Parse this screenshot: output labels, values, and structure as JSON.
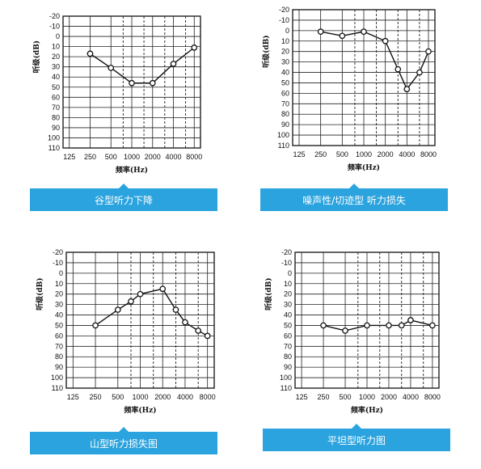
{
  "chart_data": [
    {
      "type": "line",
      "title": "",
      "xlabel": "频率(Hz)",
      "ylabel": "听级(dB)",
      "categories": [
        "125",
        "250",
        "500",
        "1000",
        "2000",
        "4000",
        "8000"
      ],
      "y_ticks": [
        "-20",
        "-10",
        "0",
        "10",
        "20",
        "30",
        "40",
        "50",
        "60",
        "70",
        "80",
        "90",
        "100",
        "110"
      ],
      "ylim": [
        -20,
        110
      ],
      "y_inverted": true,
      "grid": true,
      "series": [
        {
          "x": [
            "250",
            "500",
            "1000",
            "2000",
            "4000",
            "8000"
          ],
          "values": [
            17,
            31,
            46,
            46,
            27,
            11
          ]
        }
      ],
      "caption": "谷型听力下降"
    },
    {
      "type": "line",
      "title": "",
      "xlabel": "频率(Hz)",
      "ylabel": "听级(dB)",
      "categories": [
        "125",
        "250",
        "500",
        "1000",
        "2000",
        "4000",
        "8000"
      ],
      "y_ticks": [
        "-20",
        "-10",
        "0",
        "10",
        "20",
        "30",
        "40",
        "50",
        "60",
        "70",
        "80",
        "90",
        "100",
        "110"
      ],
      "ylim": [
        -20,
        110
      ],
      "y_inverted": true,
      "grid": true,
      "series": [
        {
          "x": [
            "250",
            "500",
            "1000",
            "2000",
            "3000",
            "4000",
            "6000",
            "8000"
          ],
          "values": [
            1,
            5,
            1,
            10,
            37,
            56,
            40,
            20
          ]
        }
      ],
      "caption": "噪声性/切迹型 听力损失"
    },
    {
      "type": "line",
      "title": "",
      "xlabel": "频率(Hz)",
      "ylabel": "听级(dB)",
      "categories": [
        "125",
        "250",
        "500",
        "1000",
        "2000",
        "4000",
        "8000"
      ],
      "y_ticks": [
        "-20",
        "-10",
        "0",
        "10",
        "20",
        "30",
        "40",
        "50",
        "60",
        "70",
        "80",
        "90",
        "100",
        "110"
      ],
      "ylim": [
        -20,
        110
      ],
      "y_inverted": true,
      "grid": true,
      "series": [
        {
          "x": [
            "250",
            "500",
            "750",
            "1000",
            "2000",
            "3000",
            "4000",
            "6000",
            "8000"
          ],
          "values": [
            50,
            35,
            27,
            20,
            15,
            35,
            47,
            55,
            60
          ]
        }
      ],
      "caption": "山型听力损失图"
    },
    {
      "type": "line",
      "title": "",
      "xlabel": "频率(Hz)",
      "ylabel": "听级(dB)",
      "categories": [
        "125",
        "250",
        "500",
        "1000",
        "2000",
        "4000",
        "8000"
      ],
      "y_ticks": [
        "-20",
        "-10",
        "0",
        "10",
        "20",
        "30",
        "40",
        "50",
        "60",
        "70",
        "80",
        "90",
        "100",
        "110"
      ],
      "ylim": [
        -20,
        110
      ],
      "y_inverted": true,
      "grid": true,
      "series": [
        {
          "x": [
            "250",
            "500",
            "1000",
            "2000",
            "3000",
            "4000",
            "8000"
          ],
          "values": [
            50,
            55,
            50,
            50,
            50,
            45,
            50
          ]
        }
      ],
      "caption": "平坦型听力图"
    }
  ]
}
